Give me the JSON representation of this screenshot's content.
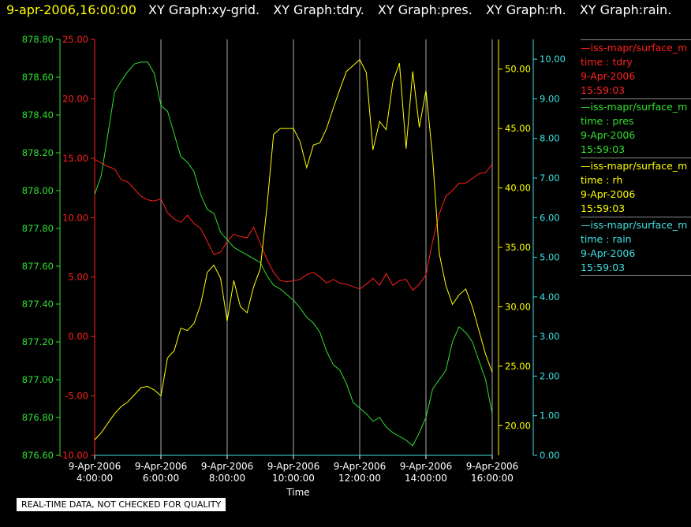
{
  "header": {
    "timestamp": "9-apr-2006,16:00:00",
    "graph_names": [
      "XY Graph:xy-grid.",
      "XY Graph:tdry.",
      "XY Graph:pres.",
      "XY Graph:rh.",
      "XY Graph:rain."
    ]
  },
  "legend": [
    {
      "name": "—iss-mapr/surface_m",
      "field": "time : tdry",
      "date": "9-Apr-2006",
      "time": "15:59:03",
      "color": "#ff2020"
    },
    {
      "name": "—iss-mapr/surface_m",
      "field": "time : pres",
      "date": "9-Apr-2006",
      "time": "15:59:03",
      "color": "#30e030"
    },
    {
      "name": "—iss-mapr/surface_m",
      "field": "time : rh",
      "date": "9-Apr-2006",
      "time": "15:59:03",
      "color": "#ffff00"
    },
    {
      "name": "—iss-mapr/surface_m",
      "field": "time : rain",
      "date": "9-Apr-2006",
      "time": "15:59:03",
      "color": "#40e0e0"
    }
  ],
  "footer": {
    "quality_note": "REAL-TIME DATA, NOT CHECKED FOR QUALITY"
  },
  "chart_data": {
    "type": "line",
    "xlabel": "Time",
    "x_ticks": [
      {
        "date": "9-Apr-2006",
        "time": "4:00:00",
        "h": 4
      },
      {
        "date": "9-Apr-2006",
        "time": "6:00:00",
        "h": 6
      },
      {
        "date": "9-Apr-2006",
        "time": "8:00:00",
        "h": 8
      },
      {
        "date": "9-Apr-2006",
        "time": "10:00:00",
        "h": 10
      },
      {
        "date": "9-Apr-2006",
        "time": "12:00:00",
        "h": 12
      },
      {
        "date": "9-Apr-2006",
        "time": "14:00:00",
        "h": 14
      },
      {
        "date": "9-Apr-2006",
        "time": "16:00:00",
        "h": 16
      }
    ],
    "xlim": [
      4,
      16
    ],
    "grid": "vertical",
    "axes": [
      {
        "id": "pres",
        "color": "#30e030",
        "side": "left",
        "ylim": [
          876.6,
          878.8
        ],
        "step": 0.2,
        "decimals": 2,
        "tick_labels": [
          "876.60",
          "876.80",
          "877.00",
          "877.20",
          "877.40",
          "877.60",
          "877.80",
          "878.00",
          "878.20",
          "878.40",
          "878.60",
          "878.80"
        ]
      },
      {
        "id": "tdry",
        "color": "#ff2020",
        "side": "left",
        "ylim": [
          -10,
          25
        ],
        "step": 5,
        "decimals": 2,
        "tick_labels": [
          "-10.00",
          "-5.00",
          "0.00",
          "5.00",
          "10.00",
          "15.00",
          "20.00",
          "25.00"
        ]
      },
      {
        "id": "rh",
        "color": "#ffff00",
        "side": "right",
        "ylim": [
          17.5,
          52.5
        ],
        "step": 5,
        "decimals": 2,
        "tick_labels": [
          "20.00",
          "25.00",
          "30.00",
          "35.00",
          "40.00",
          "45.00",
          "50.00"
        ]
      },
      {
        "id": "rain",
        "color": "#40e0e0",
        "side": "right",
        "ylim": [
          0,
          10.5
        ],
        "step": 1,
        "decimals": 2,
        "tick_labels": [
          "0.00",
          "1.00",
          "2.00",
          "3.00",
          "4.00",
          "5.00",
          "6.00",
          "7.00",
          "8.00",
          "9.00",
          "10.00"
        ]
      }
    ],
    "series": [
      {
        "name": "tdry",
        "axis": "tdry",
        "color": "#ff2020",
        "x": [
          4.0,
          4.2,
          4.4,
          4.6,
          4.8,
          5.0,
          5.2,
          5.4,
          5.6,
          5.8,
          6.0,
          6.2,
          6.4,
          6.6,
          6.8,
          7.0,
          7.2,
          7.4,
          7.6,
          7.8,
          8.0,
          8.2,
          8.4,
          8.6,
          8.8,
          9.0,
          9.2,
          9.4,
          9.6,
          9.8,
          10.0,
          10.2,
          10.4,
          10.6,
          10.8,
          11.0,
          11.2,
          11.4,
          11.6,
          11.8,
          12.0,
          12.2,
          12.4,
          12.6,
          12.8,
          13.0,
          13.2,
          13.4,
          13.6,
          13.8,
          14.0,
          14.2,
          14.4,
          14.6,
          14.8,
          15.0,
          15.2,
          15.4,
          15.6,
          15.8,
          16.0
        ],
        "y": [
          14.9,
          14.6,
          14.3,
          14.1,
          13.2,
          13.0,
          12.4,
          11.8,
          11.5,
          11.4,
          11.6,
          10.4,
          9.9,
          9.6,
          10.2,
          9.5,
          9.1,
          8.0,
          6.9,
          7.1,
          8.0,
          8.6,
          8.4,
          8.3,
          9.2,
          7.8,
          6.5,
          5.4,
          4.7,
          4.6,
          4.7,
          4.8,
          5.2,
          5.4,
          5.0,
          4.5,
          4.8,
          4.5,
          4.4,
          4.2,
          4.0,
          4.4,
          4.9,
          4.3,
          5.3,
          4.3,
          4.7,
          4.8,
          3.9,
          4.4,
          5.2,
          8.0,
          10.3,
          11.8,
          12.3,
          12.9,
          12.9,
          13.3,
          13.7,
          13.8,
          14.5
        ]
      },
      {
        "name": "pres",
        "axis": "pres",
        "color": "#30e030",
        "x": [
          4.0,
          4.2,
          4.4,
          4.6,
          4.8,
          5.0,
          5.2,
          5.4,
          5.6,
          5.8,
          6.0,
          6.2,
          6.4,
          6.6,
          6.8,
          7.0,
          7.2,
          7.4,
          7.6,
          7.8,
          8.0,
          8.2,
          8.4,
          8.6,
          8.8,
          9.0,
          9.2,
          9.4,
          9.6,
          9.8,
          10.0,
          10.2,
          10.4,
          10.6,
          10.8,
          11.0,
          11.2,
          11.4,
          11.6,
          11.8,
          12.0,
          12.2,
          12.4,
          12.6,
          12.8,
          13.0,
          13.2,
          13.4,
          13.6,
          13.8,
          14.0,
          14.2,
          14.4,
          14.6,
          14.8,
          15.0,
          15.2,
          15.4,
          15.6,
          15.8,
          16.0
        ],
        "y": [
          877.98,
          878.08,
          878.3,
          878.52,
          878.58,
          878.63,
          878.67,
          878.68,
          878.68,
          878.62,
          878.45,
          878.42,
          878.3,
          878.18,
          878.15,
          878.1,
          877.98,
          877.9,
          877.88,
          877.78,
          877.74,
          877.7,
          877.68,
          877.66,
          877.64,
          877.62,
          877.55,
          877.5,
          877.48,
          877.45,
          877.42,
          877.38,
          877.33,
          877.3,
          877.25,
          877.15,
          877.08,
          877.05,
          876.98,
          876.88,
          876.85,
          876.82,
          876.78,
          876.8,
          876.75,
          876.72,
          876.7,
          876.68,
          876.65,
          876.72,
          876.8,
          876.95,
          877.0,
          877.05,
          877.2,
          877.28,
          877.25,
          877.2,
          877.1,
          877.0,
          876.82
        ]
      },
      {
        "name": "rh",
        "axis": "rh",
        "color": "#ffff00",
        "x": [
          4.0,
          4.2,
          4.4,
          4.6,
          4.8,
          5.0,
          5.2,
          5.4,
          5.6,
          5.8,
          6.0,
          6.2,
          6.4,
          6.6,
          6.8,
          7.0,
          7.2,
          7.4,
          7.6,
          7.8,
          8.0,
          8.2,
          8.4,
          8.6,
          8.8,
          9.0,
          9.2,
          9.4,
          9.6,
          9.8,
          10.0,
          10.2,
          10.4,
          10.6,
          10.8,
          11.0,
          11.2,
          11.4,
          11.6,
          11.8,
          12.0,
          12.2,
          12.4,
          12.6,
          12.8,
          13.0,
          13.2,
          13.4,
          13.6,
          13.8,
          14.0,
          14.2,
          14.4,
          14.6,
          14.8,
          15.0,
          15.2,
          15.4,
          15.6,
          15.8,
          16.0
        ],
        "y": [
          18.8,
          19.4,
          20.2,
          21.0,
          21.6,
          22.0,
          22.6,
          23.2,
          23.3,
          23.0,
          22.5,
          25.7,
          26.3,
          28.2,
          28.0,
          28.6,
          30.2,
          32.9,
          33.5,
          32.4,
          28.8,
          32.2,
          30.0,
          29.5,
          31.7,
          33.2,
          38.4,
          44.5,
          45.0,
          45.0,
          45.0,
          43.9,
          41.7,
          43.6,
          43.8,
          45.0,
          46.7,
          48.3,
          49.8,
          50.3,
          50.8,
          49.7,
          43.2,
          45.6,
          44.9,
          48.9,
          50.5,
          43.3,
          49.8,
          45.1,
          48.2,
          42.6,
          34.5,
          31.8,
          30.2,
          31.0,
          31.5,
          30.0,
          28.0,
          26.0,
          24.5
        ]
      },
      {
        "name": "rain",
        "axis": "rain",
        "color": "#40e0e0",
        "x": [
          4.0,
          16.0
        ],
        "y": [
          0.0,
          0.0
        ]
      }
    ]
  }
}
